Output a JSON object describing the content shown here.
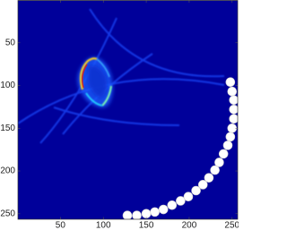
{
  "chart_data": {
    "type": "scatter",
    "x": [
      248,
      250,
      252,
      252,
      252,
      250,
      248,
      245,
      240,
      235,
      230,
      223,
      216,
      208,
      199,
      190,
      180,
      170,
      160,
      150,
      139,
      128
    ],
    "y": [
      96,
      107,
      117,
      128,
      139,
      150,
      160,
      170,
      180,
      190,
      199,
      208,
      216,
      223,
      230,
      235,
      240,
      245,
      248,
      250,
      252,
      252
    ],
    "color": "#ffffff",
    "xlim": [
      0.5,
      256.5
    ],
    "ylim": [
      0.5,
      256.5
    ],
    "y_direction": "reverse",
    "xticks": [
      50,
      100,
      150,
      200,
      250
    ],
    "yticks": [
      50,
      100,
      150,
      200,
      250
    ]
  }
}
